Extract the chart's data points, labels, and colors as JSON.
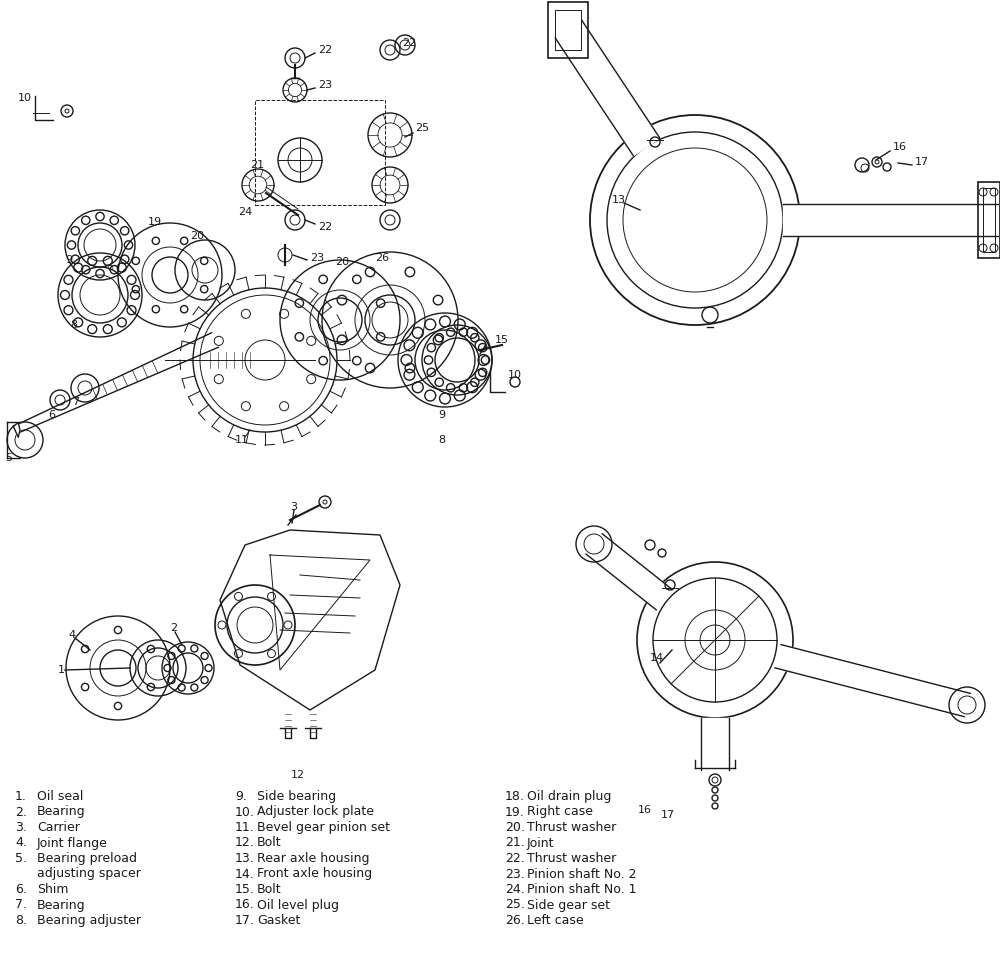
{
  "background_color": "#ffffff",
  "line_color": "#1a1a1a",
  "text_color": "#1a1a1a",
  "figsize": [
    10.0,
    9.64
  ],
  "dpi": 100,
  "legend_col1": [
    [
      "1.",
      "Oil seal"
    ],
    [
      "2.",
      "Bearing"
    ],
    [
      "3.",
      "Carrier"
    ],
    [
      "4.",
      "Joint flange"
    ],
    [
      "5.",
      "Bearing preload"
    ],
    [
      "",
      "adjusting spacer"
    ],
    [
      "6.",
      "Shim"
    ],
    [
      "7.",
      "Bearing"
    ],
    [
      "8.",
      "Bearing adjuster"
    ]
  ],
  "legend_col2": [
    [
      "9.",
      "Side bearing"
    ],
    [
      "10.",
      "Adjuster lock plate"
    ],
    [
      "11.",
      "Bevel gear pinion set"
    ],
    [
      "12.",
      "Bolt"
    ],
    [
      "13.",
      "Rear axle housing"
    ],
    [
      "14.",
      "Front axle housing"
    ],
    [
      "15.",
      "Bolt"
    ],
    [
      "16.",
      "Oil level plug"
    ],
    [
      "17.",
      "Gasket"
    ]
  ],
  "legend_col3": [
    [
      "18.",
      "Oil drain plug"
    ],
    [
      "19.",
      "Right case"
    ],
    [
      "20.",
      "Thrust washer"
    ],
    [
      "21.",
      "Joint"
    ],
    [
      "22.",
      "Thrust washer"
    ],
    [
      "23.",
      "Pinion shaft No. 2"
    ],
    [
      "24.",
      "Pinion shaft No. 1"
    ],
    [
      "25.",
      "Side gear set"
    ],
    [
      "26.",
      "Left case"
    ]
  ]
}
